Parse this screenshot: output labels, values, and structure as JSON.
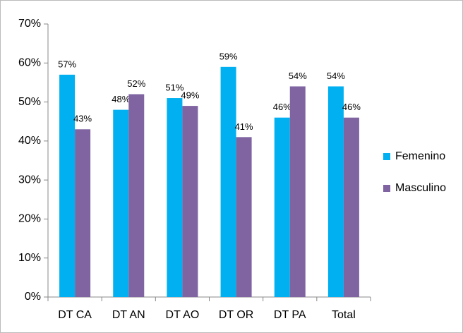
{
  "chart_data": {
    "type": "bar",
    "categories": [
      "DT CA",
      "DT AN",
      "DT AO",
      "DT OR",
      "DT PA",
      "Total"
    ],
    "series": [
      {
        "name": "Femenino",
        "color": "#00b0f0",
        "values": [
          57,
          48,
          51,
          59,
          46,
          54
        ],
        "value_labels": [
          "57%",
          "48%",
          "51%",
          "59%",
          "46%",
          "54%"
        ]
      },
      {
        "name": "Masculino",
        "color": "#8064a2",
        "values": [
          43,
          52,
          49,
          41,
          54,
          46
        ],
        "value_labels": [
          "43%",
          "52%",
          "49%",
          "41%",
          "54%",
          "46%"
        ]
      }
    ],
    "ylim": [
      0,
      70
    ],
    "yticks": [
      {
        "value": 0,
        "label": "0%"
      },
      {
        "value": 10,
        "label": "10%"
      },
      {
        "value": 20,
        "label": "20%"
      },
      {
        "value": 30,
        "label": "30%"
      },
      {
        "value": 40,
        "label": "40%"
      },
      {
        "value": 50,
        "label": "50%"
      },
      {
        "value": 60,
        "label": "60%"
      },
      {
        "value": 70,
        "label": "70%"
      }
    ],
    "grid": false,
    "legend": "right"
  }
}
